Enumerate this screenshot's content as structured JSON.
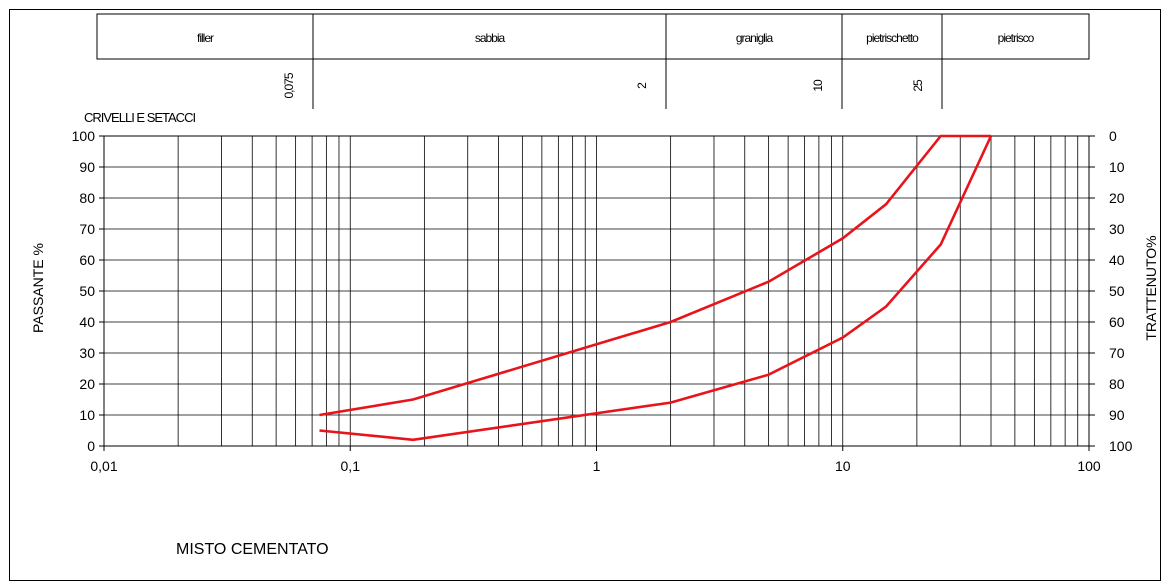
{
  "header": {
    "zones": [
      "filler",
      "sabbia",
      "graniglia",
      "pietrischetto",
      "pietrisco"
    ],
    "sieve_marks": [
      "0,075",
      "2",
      "10",
      "25"
    ],
    "sieve_label": "CRIVELLI E SETACCI"
  },
  "footer_title": "MISTO CEMENTATO",
  "chart_data": {
    "type": "line",
    "title": "",
    "xlabel": "",
    "ylabel": "PASSANTE %",
    "y2label": "TRATTENUTO%",
    "xscale": "log",
    "xlim": [
      0.01,
      100
    ],
    "ylim": [
      0,
      100
    ],
    "x_tick_labels": [
      "0,01",
      "0,1",
      "1",
      "10",
      "100"
    ],
    "y_tick_labels": [
      "0",
      "10",
      "20",
      "30",
      "40",
      "50",
      "60",
      "70",
      "80",
      "90",
      "100"
    ],
    "y2_tick_labels": [
      "100",
      "90",
      "80",
      "70",
      "60",
      "50",
      "40",
      "30",
      "20",
      "10",
      "0"
    ],
    "grid": true,
    "line_color": "#e8141b",
    "series": [
      {
        "x": [
          0.075,
          0.18,
          2,
          5,
          10,
          15,
          25,
          40
        ],
        "y": [
          10,
          15,
          40,
          53,
          67,
          78,
          100,
          100
        ]
      },
      {
        "x": [
          0.075,
          0.18,
          2,
          5,
          10,
          15,
          25,
          40
        ],
        "y": [
          5,
          2,
          14,
          23,
          35,
          45,
          65,
          100
        ]
      }
    ]
  }
}
